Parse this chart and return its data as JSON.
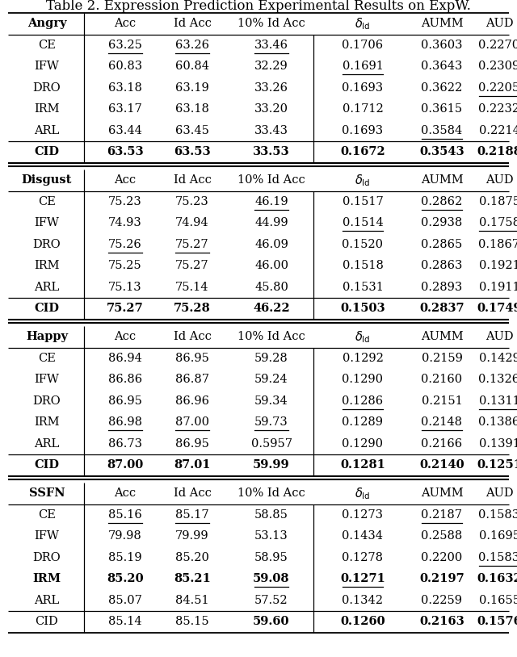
{
  "title": "Table 2. Expression Prediction Experimental Results on ExpW.",
  "sections": [
    {
      "header": "Angry",
      "rows": [
        {
          "method": "CE",
          "vals": [
            "63.25",
            "63.26",
            "33.46",
            "0.1706",
            "0.3603",
            "0.2270"
          ],
          "ul": [
            1,
            1,
            1,
            0,
            0,
            0
          ],
          "bold_row": false,
          "bold_vals": []
        },
        {
          "method": "IFW",
          "vals": [
            "60.83",
            "60.84",
            "32.29",
            "0.1691",
            "0.3643",
            "0.2309"
          ],
          "ul": [
            0,
            0,
            0,
            1,
            0,
            0
          ],
          "bold_row": false,
          "bold_vals": []
        },
        {
          "method": "DRO",
          "vals": [
            "63.18",
            "63.19",
            "33.26",
            "0.1693",
            "0.3622",
            "0.2205"
          ],
          "ul": [
            0,
            0,
            0,
            0,
            0,
            1
          ],
          "bold_row": false,
          "bold_vals": []
        },
        {
          "method": "IRM",
          "vals": [
            "63.17",
            "63.18",
            "33.20",
            "0.1712",
            "0.3615",
            "0.2232"
          ],
          "ul": [
            0,
            0,
            0,
            0,
            0,
            0
          ],
          "bold_row": false,
          "bold_vals": []
        },
        {
          "method": "ARL",
          "vals": [
            "63.44",
            "63.45",
            "33.43",
            "0.1693",
            "0.3584",
            "0.2214"
          ],
          "ul": [
            0,
            0,
            0,
            0,
            1,
            0
          ],
          "bold_row": false,
          "bold_vals": []
        },
        {
          "method": "CID",
          "vals": [
            "63.53",
            "63.53",
            "33.53",
            "0.1672",
            "0.3543",
            "0.2188"
          ],
          "ul": [
            0,
            0,
            0,
            0,
            0,
            0
          ],
          "bold_row": true,
          "bold_vals": [
            0,
            1,
            2,
            3,
            4,
            5
          ]
        }
      ]
    },
    {
      "header": "Disgust",
      "rows": [
        {
          "method": "CE",
          "vals": [
            "75.23",
            "75.23",
            "46.19",
            "0.1517",
            "0.2862",
            "0.1875"
          ],
          "ul": [
            0,
            0,
            1,
            0,
            1,
            0
          ],
          "bold_row": false,
          "bold_vals": []
        },
        {
          "method": "IFW",
          "vals": [
            "74.93",
            "74.94",
            "44.99",
            "0.1514",
            "0.2938",
            "0.1758"
          ],
          "ul": [
            0,
            0,
            0,
            1,
            0,
            1
          ],
          "bold_row": false,
          "bold_vals": []
        },
        {
          "method": "DRO",
          "vals": [
            "75.26",
            "75.27",
            "46.09",
            "0.1520",
            "0.2865",
            "0.1867"
          ],
          "ul": [
            1,
            1,
            0,
            0,
            0,
            0
          ],
          "bold_row": false,
          "bold_vals": []
        },
        {
          "method": "IRM",
          "vals": [
            "75.25",
            "75.27",
            "46.00",
            "0.1518",
            "0.2863",
            "0.1921"
          ],
          "ul": [
            0,
            0,
            0,
            0,
            0,
            0
          ],
          "bold_row": false,
          "bold_vals": []
        },
        {
          "method": "ARL",
          "vals": [
            "75.13",
            "75.14",
            "45.80",
            "0.1531",
            "0.2893",
            "0.1911"
          ],
          "ul": [
            0,
            0,
            0,
            0,
            0,
            0
          ],
          "bold_row": false,
          "bold_vals": []
        },
        {
          "method": "CID",
          "vals": [
            "75.27",
            "75.28",
            "46.22",
            "0.1503",
            "0.2837",
            "0.1749"
          ],
          "ul": [
            0,
            0,
            0,
            0,
            0,
            0
          ],
          "bold_row": true,
          "bold_vals": [
            0,
            1,
            2,
            3,
            4,
            5
          ]
        }
      ]
    },
    {
      "header": "Happy",
      "rows": [
        {
          "method": "CE",
          "vals": [
            "86.94",
            "86.95",
            "59.28",
            "0.1292",
            "0.2159",
            "0.1429"
          ],
          "ul": [
            0,
            0,
            0,
            0,
            0,
            0
          ],
          "bold_row": false,
          "bold_vals": []
        },
        {
          "method": "IFW",
          "vals": [
            "86.86",
            "86.87",
            "59.24",
            "0.1290",
            "0.2160",
            "0.1326"
          ],
          "ul": [
            0,
            0,
            0,
            0,
            0,
            0
          ],
          "bold_row": false,
          "bold_vals": []
        },
        {
          "method": "DRO",
          "vals": [
            "86.95",
            "86.96",
            "59.34",
            "0.1286",
            "0.2151",
            "0.1311"
          ],
          "ul": [
            0,
            0,
            0,
            1,
            0,
            1
          ],
          "bold_row": false,
          "bold_vals": []
        },
        {
          "method": "IRM",
          "vals": [
            "86.98",
            "87.00",
            "59.73",
            "0.1289",
            "0.2148",
            "0.1386"
          ],
          "ul": [
            1,
            1,
            1,
            0,
            1,
            0
          ],
          "bold_row": false,
          "bold_vals": []
        },
        {
          "method": "ARL",
          "vals": [
            "86.73",
            "86.95",
            "0.5957",
            "0.1290",
            "0.2166",
            "0.1391"
          ],
          "ul": [
            0,
            0,
            0,
            0,
            0,
            0
          ],
          "bold_row": false,
          "bold_vals": []
        },
        {
          "method": "CID",
          "vals": [
            "87.00",
            "87.01",
            "59.99",
            "0.1281",
            "0.2140",
            "0.1251"
          ],
          "ul": [
            0,
            0,
            0,
            0,
            0,
            0
          ],
          "bold_row": true,
          "bold_vals": [
            0,
            1,
            2,
            3,
            4,
            5
          ]
        }
      ]
    },
    {
      "header": "SSFN",
      "rows": [
        {
          "method": "CE",
          "vals": [
            "85.16",
            "85.17",
            "58.85",
            "0.1273",
            "0.2187",
            "0.1583"
          ],
          "ul": [
            1,
            1,
            0,
            0,
            1,
            0
          ],
          "bold_row": false,
          "bold_vals": []
        },
        {
          "method": "IFW",
          "vals": [
            "79.98",
            "79.99",
            "53.13",
            "0.1434",
            "0.2588",
            "0.1695"
          ],
          "ul": [
            0,
            0,
            0,
            0,
            0,
            0
          ],
          "bold_row": false,
          "bold_vals": []
        },
        {
          "method": "DRO",
          "vals": [
            "85.19",
            "85.20",
            "58.95",
            "0.1278",
            "0.2200",
            "0.1583"
          ],
          "ul": [
            0,
            0,
            0,
            0,
            0,
            1
          ],
          "bold_row": false,
          "bold_vals": []
        },
        {
          "method": "IRM",
          "vals": [
            "85.20",
            "85.21",
            "59.08",
            "0.1271",
            "0.2197",
            "0.1632"
          ],
          "ul": [
            0,
            0,
            1,
            1,
            0,
            0
          ],
          "bold_row": true,
          "bold_vals": [
            0,
            1
          ]
        },
        {
          "method": "ARL",
          "vals": [
            "85.07",
            "84.51",
            "57.52",
            "0.1342",
            "0.2259",
            "0.1655"
          ],
          "ul": [
            0,
            0,
            0,
            0,
            0,
            0
          ],
          "bold_row": false,
          "bold_vals": []
        },
        {
          "method": "CID",
          "vals": [
            "85.14",
            "85.15",
            "59.60",
            "0.1260",
            "0.2163",
            "0.1576"
          ],
          "ul": [
            0,
            0,
            0,
            0,
            0,
            0
          ],
          "bold_row": false,
          "bold_vals": [
            2,
            3,
            4,
            5
          ]
        }
      ]
    }
  ],
  "figsize": [
    6.4,
    8.14
  ],
  "dpi": 100
}
